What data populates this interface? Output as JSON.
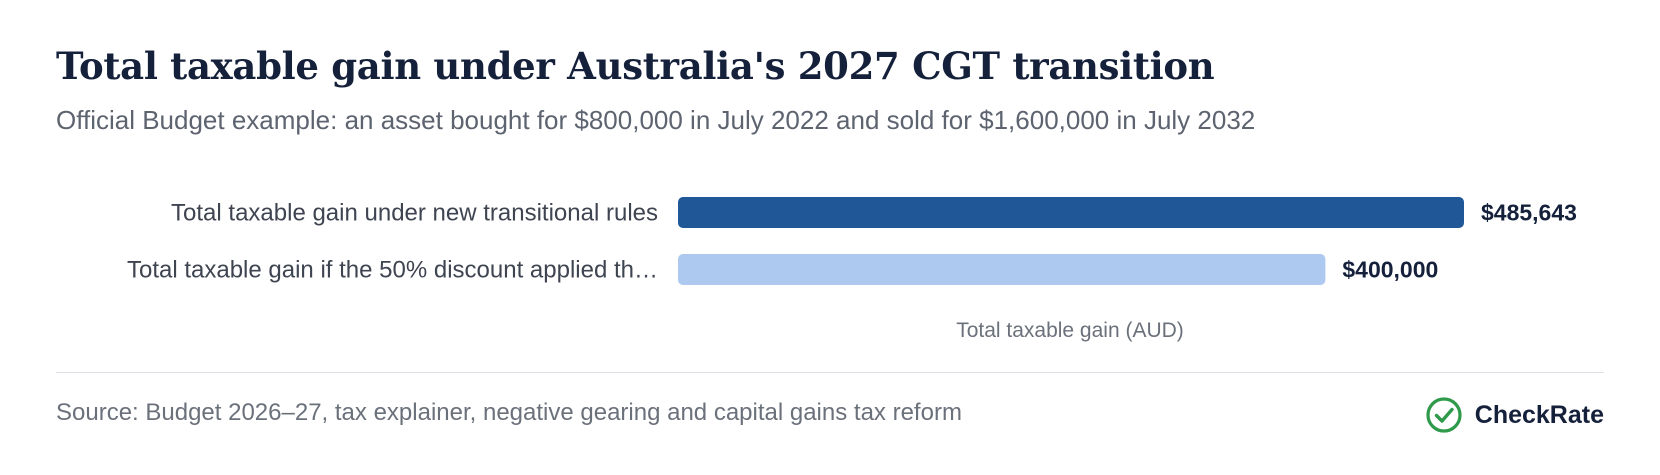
{
  "title": "Total taxable gain under Australia's 2027 CGT transition",
  "subtitle": "Official Budget example: an asset bought for $800,000 in July 2022 and sold for $1,600,000 in July 2032",
  "source": "Source: Budget 2026–27, tax explainer, negative gearing and capital gains tax reform",
  "brand": {
    "name": "CheckRate",
    "icon": "check-circle-icon",
    "color": "#2e9a4a"
  },
  "chart_data": {
    "type": "bar",
    "orientation": "horizontal",
    "categories": [
      "Total taxable gain under new transitional rules",
      "Total taxable gain if the 50% discount applied th…"
    ],
    "values": [
      485643,
      400000
    ],
    "value_labels": [
      "$485,643",
      "$400,000"
    ],
    "colors": [
      "#1f5797",
      "#adc9f0"
    ],
    "xlabel": "Total taxable gain (AUD)",
    "xlim": [
      0,
      485643
    ],
    "grid": false,
    "legend": "none"
  }
}
